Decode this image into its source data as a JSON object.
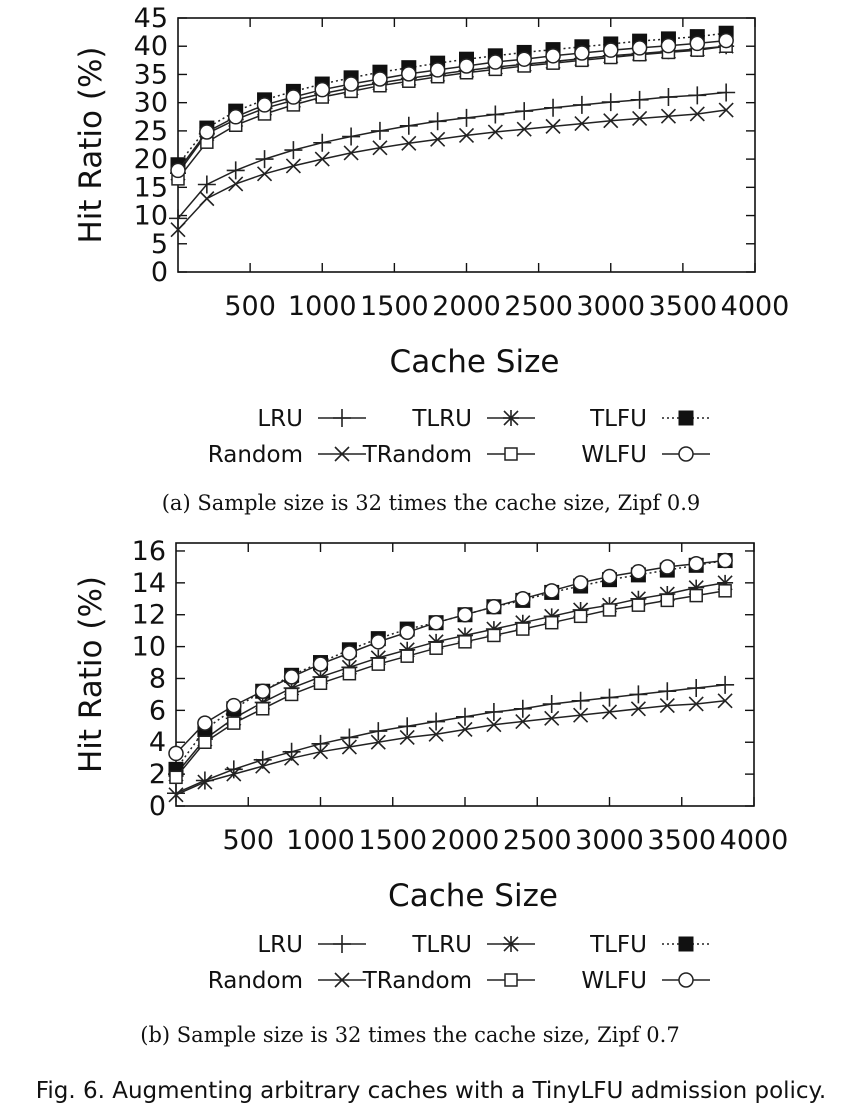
{
  "chart_data": [
    {
      "type": "line",
      "xlabel": "Cache Size",
      "ylabel": "Hit Ratio (%)",
      "xlim": [
        0,
        4000
      ],
      "ylim": [
        0,
        45
      ],
      "xticks": [
        500,
        1000,
        1500,
        2000,
        2500,
        3000,
        3500,
        4000
      ],
      "yticks": [
        0,
        5,
        10,
        15,
        20,
        25,
        30,
        35,
        40,
        45
      ],
      "x": [
        0,
        200,
        400,
        600,
        800,
        1000,
        1200,
        1400,
        1600,
        1800,
        2000,
        2200,
        2400,
        2600,
        2800,
        3000,
        3200,
        3400,
        3600,
        3800
      ],
      "series": [
        {
          "name": "LRU",
          "marker": "plus",
          "style": "solid",
          "values": [
            9.5,
            15.5,
            18.0,
            20.0,
            21.6,
            22.9,
            24.0,
            25.0,
            25.9,
            26.7,
            27.3,
            27.9,
            28.5,
            29.1,
            29.6,
            30.1,
            30.5,
            31.0,
            31.3,
            31.8
          ]
        },
        {
          "name": "TLRU",
          "marker": "star",
          "style": "solid",
          "values": [
            17.5,
            24.5,
            27.0,
            29.0,
            30.4,
            31.6,
            32.6,
            33.5,
            34.3,
            35.0,
            35.7,
            36.3,
            36.8,
            37.3,
            37.8,
            38.3,
            38.7,
            39.1,
            39.5,
            40.0
          ]
        },
        {
          "name": "TLFU",
          "marker": "filled-square",
          "style": "dotted",
          "values": [
            19.0,
            25.5,
            28.5,
            30.5,
            32.0,
            33.3,
            34.4,
            35.4,
            36.2,
            37.0,
            37.7,
            38.3,
            38.9,
            39.4,
            39.9,
            40.4,
            40.9,
            41.3,
            41.7,
            42.3
          ]
        },
        {
          "name": "Random",
          "marker": "x",
          "style": "solid",
          "values": [
            7.5,
            13.0,
            15.6,
            17.4,
            18.8,
            20.0,
            21.1,
            22.0,
            22.8,
            23.5,
            24.2,
            24.8,
            25.3,
            25.8,
            26.3,
            26.8,
            27.2,
            27.6,
            28.0,
            28.7
          ]
        },
        {
          "name": "TRandom",
          "marker": "open-square",
          "style": "solid",
          "values": [
            16.5,
            23.0,
            26.0,
            28.0,
            29.6,
            31.0,
            32.0,
            33.0,
            33.8,
            34.6,
            35.3,
            35.9,
            36.5,
            37.0,
            37.5,
            38.0,
            38.5,
            38.9,
            39.3,
            40.0
          ]
        },
        {
          "name": "WLFU",
          "marker": "circle",
          "style": "solid",
          "values": [
            18.0,
            24.8,
            27.5,
            29.6,
            31.0,
            32.3,
            33.3,
            34.2,
            35.1,
            35.8,
            36.5,
            37.2,
            37.7,
            38.3,
            38.8,
            39.3,
            39.7,
            40.1,
            40.5,
            41.0
          ]
        }
      ]
    },
    {
      "type": "line",
      "xlabel": "Cache Size",
      "ylabel": "Hit Ratio (%)",
      "xlim": [
        0,
        4000
      ],
      "ylim": [
        0,
        16.5
      ],
      "xticks": [
        500,
        1000,
        1500,
        2000,
        2500,
        3000,
        3500,
        4000
      ],
      "yticks": [
        0,
        2,
        4,
        6,
        8,
        10,
        12,
        14,
        16
      ],
      "x": [
        0,
        200,
        400,
        600,
        800,
        1000,
        1200,
        1400,
        1600,
        1800,
        2000,
        2200,
        2400,
        2600,
        2800,
        3000,
        3200,
        3400,
        3600,
        3800
      ],
      "series": [
        {
          "name": "LRU",
          "marker": "plus",
          "style": "solid",
          "values": [
            0.8,
            1.6,
            2.3,
            2.9,
            3.4,
            3.9,
            4.3,
            4.7,
            5.0,
            5.3,
            5.6,
            5.9,
            6.1,
            6.4,
            6.6,
            6.8,
            7.0,
            7.2,
            7.4,
            7.6
          ]
        },
        {
          "name": "TLRU",
          "marker": "star",
          "style": "solid",
          "values": [
            2.0,
            4.2,
            5.5,
            6.5,
            7.4,
            8.1,
            8.7,
            9.3,
            9.8,
            10.3,
            10.7,
            11.1,
            11.5,
            11.9,
            12.3,
            12.6,
            13.0,
            13.3,
            13.7,
            14.0
          ]
        },
        {
          "name": "TLFU",
          "marker": "filled-square",
          "style": "dotted",
          "values": [
            2.3,
            4.8,
            6.1,
            7.2,
            8.2,
            9.0,
            9.8,
            10.5,
            11.1,
            11.5,
            12.0,
            12.5,
            12.9,
            13.4,
            13.8,
            14.2,
            14.5,
            14.8,
            15.1,
            15.4
          ]
        },
        {
          "name": "Random",
          "marker": "x",
          "style": "solid",
          "values": [
            0.7,
            1.5,
            2.0,
            2.5,
            3.0,
            3.4,
            3.7,
            4.0,
            4.3,
            4.5,
            4.8,
            5.1,
            5.3,
            5.5,
            5.7,
            5.9,
            6.1,
            6.3,
            6.4,
            6.6
          ]
        },
        {
          "name": "TRandom",
          "marker": "open-square",
          "style": "solid",
          "values": [
            1.8,
            4.0,
            5.2,
            6.1,
            7.0,
            7.7,
            8.3,
            8.9,
            9.4,
            9.9,
            10.3,
            10.7,
            11.1,
            11.5,
            11.9,
            12.3,
            12.6,
            12.9,
            13.2,
            13.5
          ]
        },
        {
          "name": "WLFU",
          "marker": "circle",
          "style": "solid",
          "values": [
            3.3,
            5.2,
            6.3,
            7.2,
            8.1,
            8.9,
            9.6,
            10.3,
            10.9,
            11.5,
            12.0,
            12.5,
            13.0,
            13.5,
            14.0,
            14.4,
            14.7,
            15.0,
            15.2,
            15.4
          ]
        }
      ]
    }
  ],
  "captions": {
    "a": "(a)  Sample size is 32 times the cache size, Zipf 0.9",
    "b": "(b)  Sample size is 32 times the cache size, Zipf 0.7",
    "figure": "Fig. 6.  Augmenting arbitrary caches with a TinyLFU admission policy."
  }
}
